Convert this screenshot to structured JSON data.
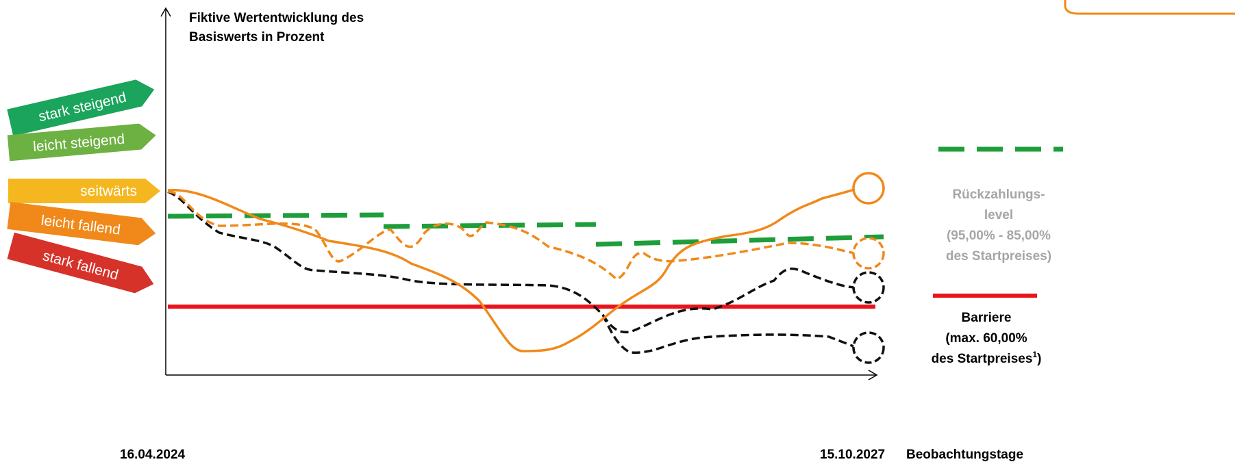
{
  "axis_title": [
    "Fiktive Wertentwicklung des",
    "Basiswerts in Prozent"
  ],
  "scenarios": [
    "stark steigend",
    "leicht steigend",
    "seitwärts",
    "leicht fallend",
    "stark fallend"
  ],
  "start_date": "16.04.2024",
  "end_date": "15.10.2027",
  "x_axis_label": "Beobachtungstage",
  "legend": {
    "repayment_level": [
      "Rückzahlungs-",
      "level",
      "(95,00% - 85,00%",
      "des Startpreises)"
    ],
    "barrier": [
      "Barriere",
      "(max. 60,00%",
      "des Startpreises",
      "1",
      ")"
    ]
  }
}
